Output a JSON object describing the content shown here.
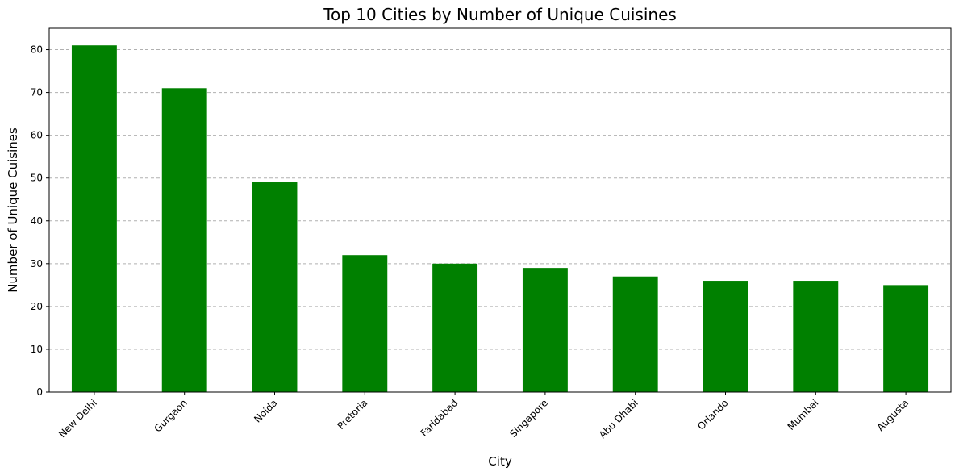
{
  "chart_data": {
    "type": "bar",
    "title": "Top 10 Cities by Number of Unique Cuisines",
    "xlabel": "City",
    "ylabel": "Number of Unique Cuisines",
    "categories": [
      "New Delhi",
      "Gurgaon",
      "Noida",
      "Pretoria",
      "Faridabad",
      "Singapore",
      "Abu Dhabi",
      "Orlando",
      "Mumbai",
      "Augusta"
    ],
    "values": [
      81,
      71,
      49,
      32,
      30,
      29,
      27,
      26,
      26,
      25
    ],
    "ylim": [
      0,
      85
    ],
    "yticks": [
      0,
      10,
      20,
      30,
      40,
      50,
      60,
      70,
      80
    ],
    "grid": "y-dashed",
    "bar_color": "#008000",
    "legend": "none"
  }
}
